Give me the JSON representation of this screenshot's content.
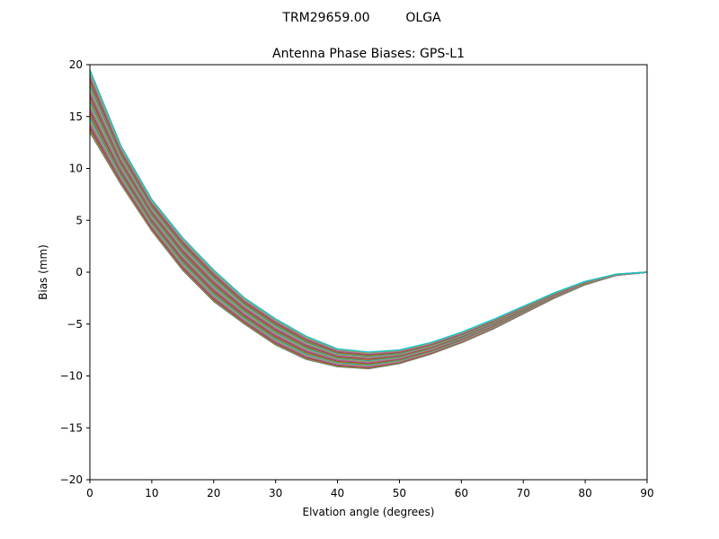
{
  "suptitle_left": "TRM29659.00",
  "suptitle_right": "OLGA",
  "chart_data": {
    "type": "line",
    "title": "Antenna Phase Biases: GPS-L1",
    "xlabel": "Elvation angle (degrees)",
    "ylabel": "Bias (mm)",
    "xlim": [
      0,
      90
    ],
    "ylim": [
      -20,
      20
    ],
    "xticks": [
      0,
      10,
      20,
      30,
      40,
      50,
      60,
      70,
      80,
      90
    ],
    "yticks": [
      -20,
      -15,
      -10,
      -5,
      0,
      5,
      10,
      15,
      20
    ],
    "grid": false,
    "legend": "none",
    "x": [
      0,
      5,
      10,
      15,
      20,
      25,
      30,
      35,
      40,
      45,
      50,
      55,
      60,
      65,
      70,
      75,
      80,
      85,
      90
    ],
    "envelope_upper": [
      19.5,
      12.2,
      7.0,
      3.3,
      0.2,
      -2.5,
      -4.5,
      -6.2,
      -7.4,
      -7.7,
      -7.5,
      -6.8,
      -5.8,
      -4.6,
      -3.3,
      -2.0,
      -0.9,
      -0.2,
      0.0
    ],
    "envelope_lower": [
      13.5,
      8.5,
      4.0,
      0.2,
      -2.8,
      -5.0,
      -7.0,
      -8.4,
      -9.1,
      -9.3,
      -8.8,
      -7.9,
      -6.8,
      -5.5,
      -4.0,
      -2.5,
      -1.2,
      -0.3,
      0.0
    ],
    "series_count": 40,
    "palette": [
      "#1f77b4",
      "#ff7f0e",
      "#2ca02c",
      "#d62728",
      "#9467bd",
      "#8c564b",
      "#e377c2",
      "#7f7f7f",
      "#bcbd22",
      "#17becf"
    ]
  }
}
